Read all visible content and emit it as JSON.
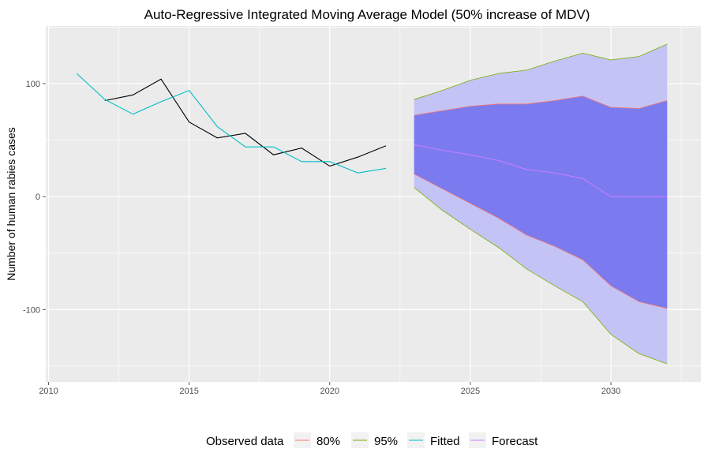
{
  "chart_data": {
    "type": "line",
    "title": "Auto-Regressive Integrated Moving Average Model (50% increase of MDV)",
    "xlabel": "",
    "ylabel": "Number of human rabies cases",
    "xlim": [
      2009.9,
      2033.2
    ],
    "ylim": [
      -164,
      151
    ],
    "x_ticks": [
      2010,
      2015,
      2020,
      2025,
      2030
    ],
    "y_ticks": [
      -100,
      0,
      100
    ],
    "grid": true,
    "legend_position": "bottom",
    "legend_title": "Observed data",
    "legend_items": [
      {
        "label": "80%",
        "color": "#F8766D"
      },
      {
        "label": "95%",
        "color": "#7CAE00"
      },
      {
        "label": "Fitted",
        "color": "#00BFC4"
      },
      {
        "label": "Forecast",
        "color": "#C77CFF"
      }
    ],
    "colors": {
      "panel": "#EBEBEB",
      "grid": "#FFFFFF",
      "observed": "#000000",
      "fitted": "#00BFC4",
      "forecast": "#C77CFF",
      "band80_fill": "#7B7BEF",
      "band95_fill": "#C3C3F5",
      "band80_edge": "#F8766D",
      "band95_edge": "#7CAE00"
    },
    "observed": {
      "x": [
        2012,
        2013,
        2014,
        2015,
        2016,
        2017,
        2018,
        2019,
        2020,
        2021,
        2022
      ],
      "y": [
        85,
        90,
        104,
        66,
        52,
        56,
        37,
        43,
        27,
        35,
        45
      ]
    },
    "fitted": {
      "x": [
        2011,
        2012,
        2013,
        2014,
        2015,
        2016,
        2017,
        2018,
        2019,
        2020,
        2021,
        2022
      ],
      "y": [
        109,
        86,
        73,
        84,
        94,
        62,
        44,
        44,
        31,
        31,
        21,
        25
      ]
    },
    "forecast": {
      "x": [
        2023,
        2024,
        2025,
        2026,
        2027,
        2028,
        2029,
        2030,
        2031,
        2032
      ],
      "y": [
        46,
        41,
        37,
        32,
        24,
        21,
        16,
        0,
        0,
        0
      ],
      "lo80": [
        20,
        7,
        -6,
        -19,
        -34,
        -44,
        -56,
        -79,
        -93,
        -99
      ],
      "hi80": [
        72,
        76,
        80,
        82,
        82,
        85,
        89,
        79,
        78,
        85
      ],
      "lo95": [
        8,
        -12,
        -29,
        -45,
        -64,
        -79,
        -93,
        -122,
        -139,
        -148
      ],
      "hi95": [
        86,
        94,
        103,
        109,
        112,
        120,
        127,
        121,
        124,
        135
      ]
    }
  }
}
